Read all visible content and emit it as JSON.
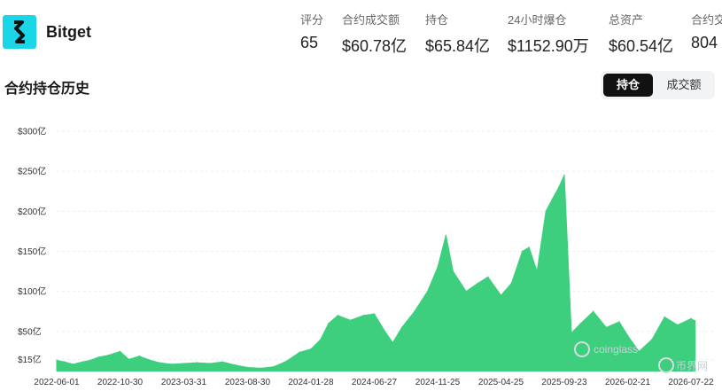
{
  "exchange": {
    "name": "Bitget",
    "logo_color": "#1bd6e6"
  },
  "stats": [
    {
      "label": "评分",
      "value": "65"
    },
    {
      "label": "合约成交额",
      "value": "$60.78亿"
    },
    {
      "label": "持仓",
      "value": "$65.84亿"
    },
    {
      "label": "24小时爆仓",
      "value": "$1152.90万"
    },
    {
      "label": "总资产",
      "value": "$60.54亿"
    },
    {
      "label": "合约交",
      "value": "804"
    }
  ],
  "section": {
    "title": "合约持仓历史",
    "tabs": [
      {
        "label": "持仓",
        "active": true
      },
      {
        "label": "成交额",
        "active": false
      }
    ]
  },
  "watermark": {
    "left": "coinglass",
    "right": "币界网"
  },
  "chart_data": {
    "type": "area",
    "color": "#3ecf7e",
    "ylim": [
      0,
      300
    ],
    "y_ticks": [
      {
        "value": 300,
        "label": "$300亿"
      },
      {
        "value": 250,
        "label": "$250亿"
      },
      {
        "value": 200,
        "label": "$200亿"
      },
      {
        "value": 150,
        "label": "$150亿"
      },
      {
        "value": 100,
        "label": "$100亿"
      },
      {
        "value": 50,
        "label": "$50亿"
      },
      {
        "value": 15,
        "label": "$15亿"
      }
    ],
    "x_ticks": [
      "2022-06-01",
      "2022-10-30",
      "2023-03-31",
      "2023-08-30",
      "2024-01-28",
      "2024-06-27",
      "2024-11-25",
      "2025-04-25",
      "2025-09-23",
      "2026-02-21",
      "2026-07-22"
    ],
    "x": [
      "2022-06-01",
      "2022-06-20",
      "2022-07-10",
      "2022-08-01",
      "2022-08-20",
      "2022-09-10",
      "2022-10-01",
      "2022-10-30",
      "2022-11-20",
      "2022-12-15",
      "2023-01-10",
      "2023-02-01",
      "2023-03-01",
      "2023-03-31",
      "2023-05-01",
      "2023-06-01",
      "2023-07-01",
      "2023-08-01",
      "2023-08-30",
      "2023-10-01",
      "2023-11-01",
      "2023-12-01",
      "2024-01-01",
      "2024-01-28",
      "2024-02-20",
      "2024-03-10",
      "2024-04-01",
      "2024-05-01",
      "2024-06-01",
      "2024-06-27",
      "2024-07-20",
      "2024-08-10",
      "2024-09-01",
      "2024-10-01",
      "2024-11-01",
      "2024-11-25",
      "2024-12-15",
      "2025-01-01",
      "2025-02-01",
      "2025-03-01",
      "2025-03-25",
      "2025-04-25",
      "2025-05-20",
      "2025-06-15",
      "2025-07-01",
      "2025-07-20",
      "2025-08-10",
      "2025-08-25",
      "2025-09-10",
      "2025-09-23",
      "2025-10-10",
      "2025-11-01",
      "2025-12-01",
      "2026-01-01",
      "2026-02-01",
      "2026-02-21",
      "2026-03-20",
      "2026-04-20",
      "2026-05-20",
      "2026-06-20",
      "2026-07-22",
      "2026-08-01"
    ],
    "values": [
      14,
      12,
      9,
      12,
      14,
      18,
      20,
      25,
      15,
      19,
      14,
      11,
      9,
      10,
      11,
      10,
      12,
      8,
      5,
      4,
      6,
      13,
      24,
      28,
      40,
      60,
      70,
      64,
      70,
      72,
      52,
      36,
      55,
      75,
      100,
      130,
      170,
      125,
      100,
      110,
      118,
      95,
      110,
      150,
      155,
      125,
      200,
      215,
      230,
      245,
      48,
      60,
      75,
      55,
      62,
      45,
      25,
      40,
      68,
      58,
      66,
      63
    ]
  }
}
